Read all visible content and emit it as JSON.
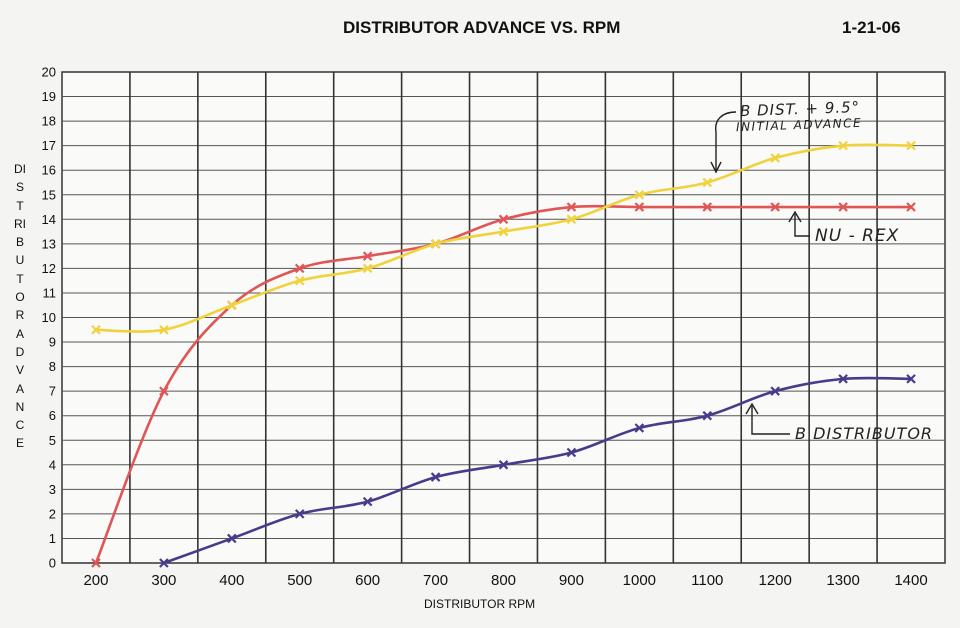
{
  "header": {
    "title": "DISTRIBUTOR ADVANCE VS. RPM",
    "date": "1-21-06"
  },
  "chart_data": {
    "type": "line",
    "title": "DISTRIBUTOR ADVANCE VS. RPM",
    "xlabel": "DISTRIBUTOR RPM",
    "ylabel": "DISTRIBUTOR ADVANCE",
    "categories": [
      "200",
      "300",
      "400",
      "500",
      "600",
      "700",
      "800",
      "900",
      "1000",
      "1100",
      "1200",
      "1300",
      "1400"
    ],
    "ylim": [
      0,
      20
    ],
    "yticks": [
      "0",
      "1",
      "2",
      "3",
      "4",
      "5",
      "6",
      "7",
      "8",
      "9",
      "10",
      "11",
      "12",
      "13",
      "14",
      "15",
      "16",
      "17",
      "18",
      "19",
      "20"
    ],
    "grid": true,
    "series": [
      {
        "name": "NU-REX",
        "color": "#e05555",
        "values": [
          0,
          7,
          10.5,
          12,
          12.5,
          13,
          14,
          14.5,
          14.5,
          14.5,
          14.5,
          14.5,
          14.5
        ]
      },
      {
        "name": "B DIST. + 9.5° INITIAL ADVANCE",
        "color": "#f0d23c",
        "values": [
          9.5,
          9.5,
          10.5,
          11.5,
          12,
          13,
          13.5,
          14,
          15,
          15.5,
          16.5,
          17,
          17
        ]
      },
      {
        "name": "B DISTRIBUTOR",
        "color": "#4a3a8c",
        "values": [
          null,
          0,
          1,
          2,
          2.5,
          3.5,
          4,
          4.5,
          5.5,
          6,
          7,
          7.5,
          7.5
        ]
      }
    ],
    "annotations": {
      "b_dist_initial_line1": "B DIST. + 9.5°",
      "b_dist_initial_line2": "INITIAL ADVANCE",
      "nu_rex": "NU - REX",
      "b_distributor": "B DISTRIBUTOR"
    }
  }
}
